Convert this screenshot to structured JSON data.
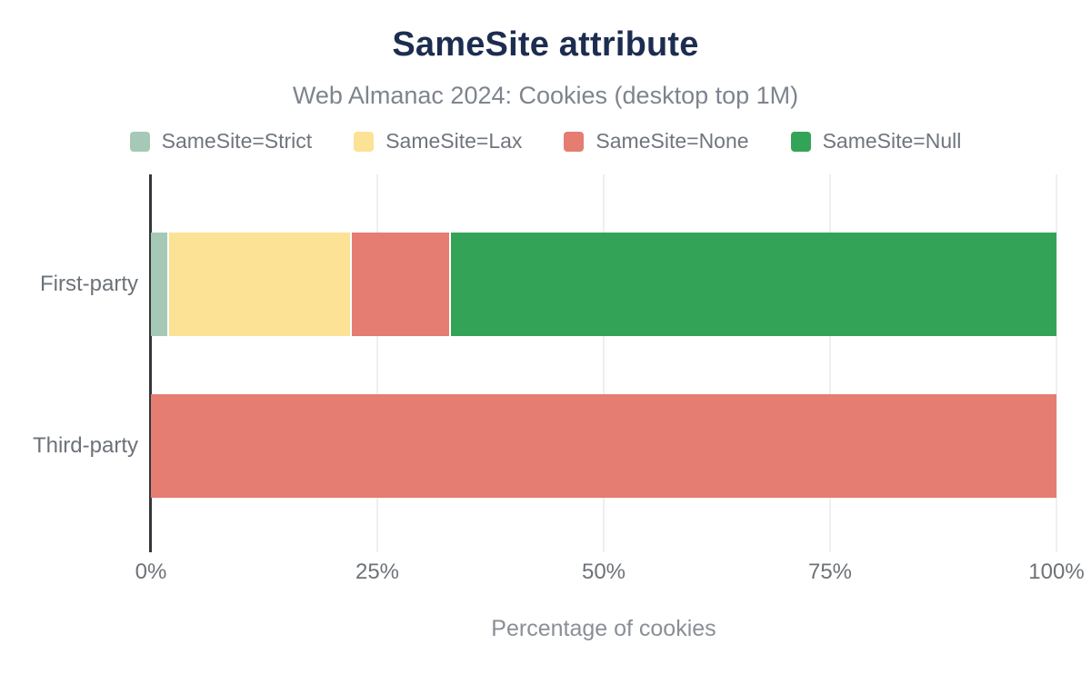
{
  "colors": {
    "background": "#ffffff",
    "title_text": "#1c2d50",
    "subtitle_text": "#7e848d",
    "axis_text": "#6d7279",
    "axis_line": "#33373b",
    "gridline": "#efefef"
  },
  "chart_data": {
    "type": "bar",
    "stacked": true,
    "orientation": "horizontal",
    "title": "SameSite attribute",
    "subtitle": "Web Almanac 2024: Cookies (desktop top 1M)",
    "xlabel": "Percentage of cookies",
    "ylabel": "",
    "xlim": [
      0,
      100
    ],
    "xticks": [
      "0%",
      "25%",
      "50%",
      "75%",
      "100%"
    ],
    "grid": true,
    "legend_position": "top",
    "categories": [
      "First-party",
      "Third-party"
    ],
    "series": [
      {
        "name": "SameSite=Strict",
        "color": "#a5c9b6",
        "values": [
          2.0,
          0.0
        ]
      },
      {
        "name": "SameSite=Lax",
        "color": "#fce294",
        "values": [
          20.2,
          0.0
        ]
      },
      {
        "name": "SameSite=None",
        "color": "#e57d72",
        "values": [
          10.9,
          100.0
        ]
      },
      {
        "name": "SameSite=Null",
        "color": "#33a457",
        "values": [
          66.9,
          0.0
        ]
      }
    ]
  }
}
